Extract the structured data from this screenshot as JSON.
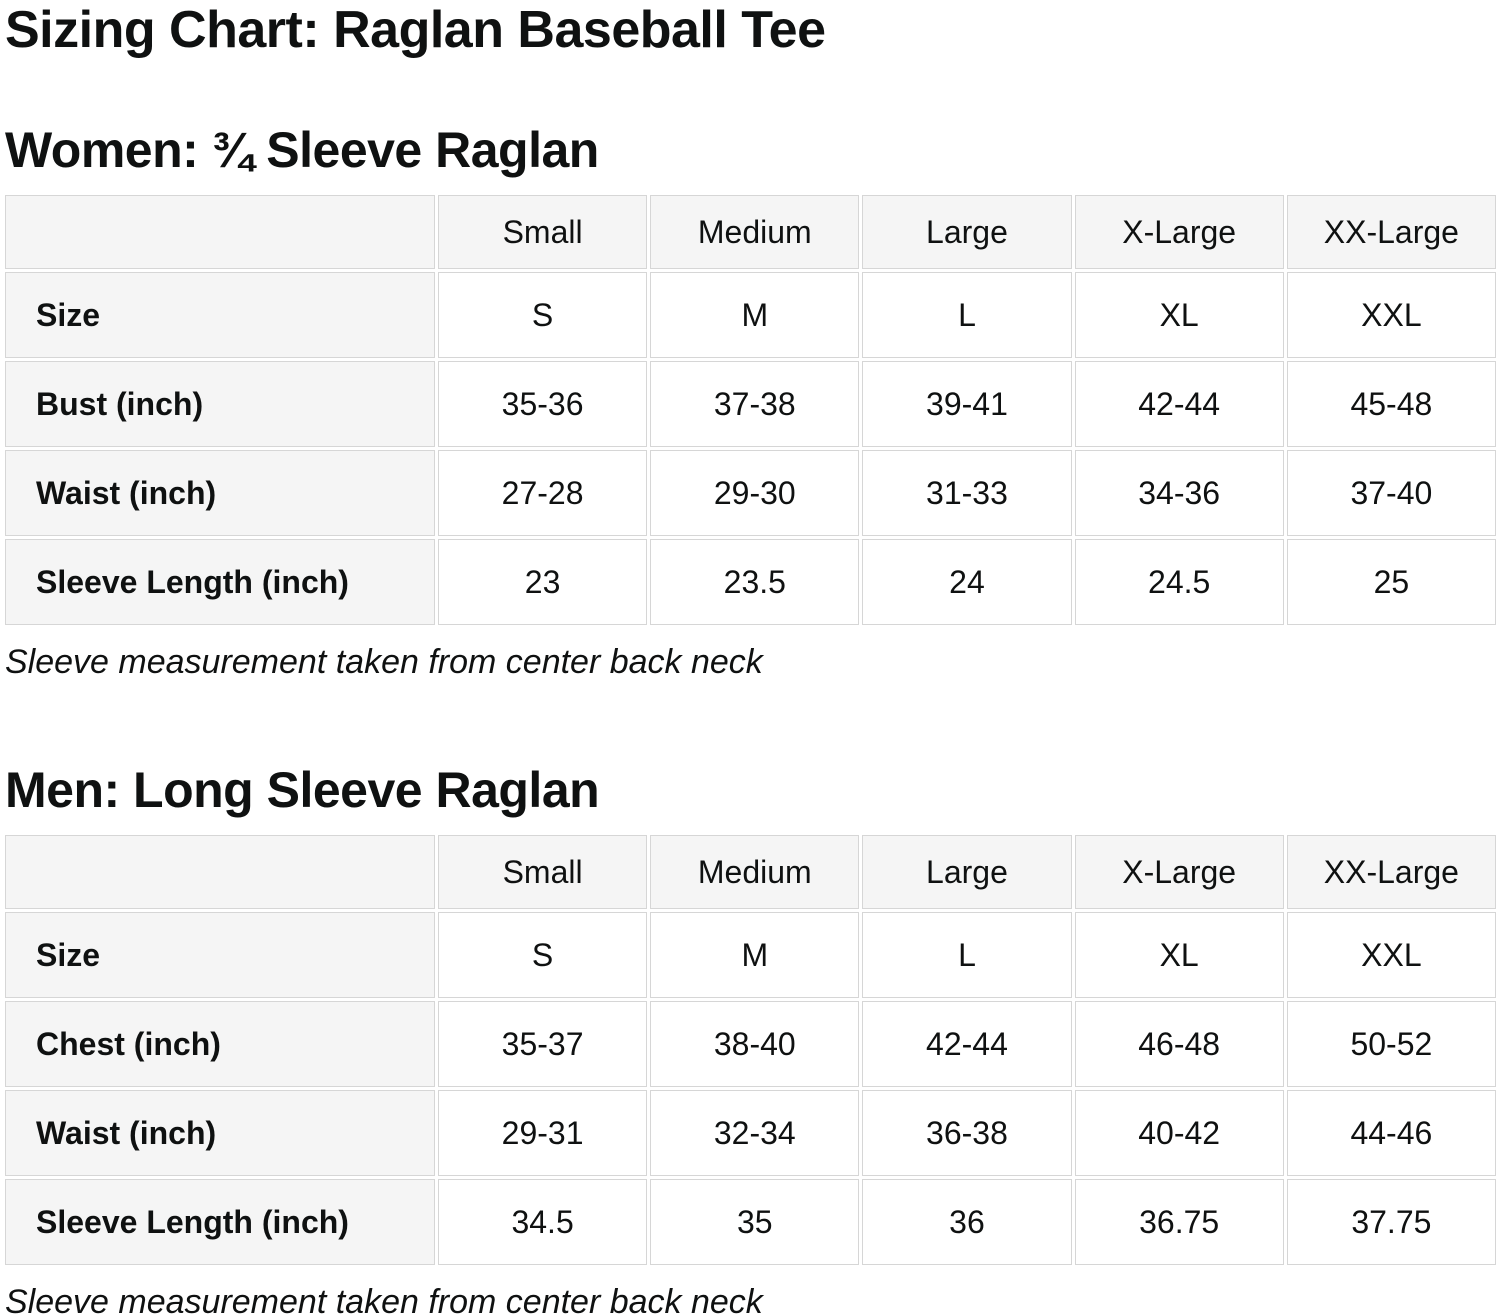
{
  "page": {
    "title": "Sizing Chart: Raglan Baseball Tee"
  },
  "colors": {
    "background": "#ffffff",
    "cell_header_bg": "#f5f5f5",
    "cell_data_bg": "#ffffff",
    "cell_border": "#d6d6d6",
    "text": "#0f1111"
  },
  "women": {
    "heading": "Women: ¾ Sleeve Raglan",
    "note": "Sleeve measurement taken from center back neck",
    "table": {
      "columns": [
        "",
        "Small",
        "Medium",
        "Large",
        "X-Large",
        "XX-Large"
      ],
      "rows": [
        {
          "label": "Size",
          "values": [
            "S",
            "M",
            "L",
            "XL",
            "XXL"
          ]
        },
        {
          "label": "Bust (inch)",
          "values": [
            "35-36",
            "37-38",
            "39-41",
            "42-44",
            "45-48"
          ]
        },
        {
          "label": "Waist (inch)",
          "values": [
            "27-28",
            "29-30",
            "31-33",
            "34-36",
            "37-40"
          ]
        },
        {
          "label": "Sleeve Length (inch)",
          "values": [
            "23",
            "23.5",
            "24",
            "24.5",
            "25"
          ]
        }
      ]
    }
  },
  "men": {
    "heading": "Men: Long Sleeve Raglan",
    "note": "Sleeve measurement taken from center back neck",
    "table": {
      "columns": [
        "",
        "Small",
        "Medium",
        "Large",
        "X-Large",
        "XX-Large"
      ],
      "rows": [
        {
          "label": "Size",
          "values": [
            "S",
            "M",
            "L",
            "XL",
            "XXL"
          ]
        },
        {
          "label": "Chest (inch)",
          "values": [
            "35-37",
            "38-40",
            "42-44",
            "46-48",
            "50-52"
          ]
        },
        {
          "label": "Waist (inch)",
          "values": [
            "29-31",
            "32-34",
            "36-38",
            "40-42",
            "44-46"
          ]
        },
        {
          "label": "Sleeve Length (inch)",
          "values": [
            "34.5",
            "35",
            "36",
            "36.75",
            "37.75"
          ]
        }
      ]
    }
  },
  "chart_data": [
    {
      "type": "table",
      "title": "Women: ¾ Sleeve Raglan",
      "columns": [
        "Small",
        "Medium",
        "Large",
        "X-Large",
        "XX-Large"
      ],
      "rows": {
        "Size": [
          "S",
          "M",
          "L",
          "XL",
          "XXL"
        ],
        "Bust (inch)": [
          "35-36",
          "37-38",
          "39-41",
          "42-44",
          "45-48"
        ],
        "Waist (inch)": [
          "27-28",
          "29-30",
          "31-33",
          "34-36",
          "37-40"
        ],
        "Sleeve Length (inch)": [
          23,
          23.5,
          24,
          24.5,
          25
        ]
      }
    },
    {
      "type": "table",
      "title": "Men: Long Sleeve Raglan",
      "columns": [
        "Small",
        "Medium",
        "Large",
        "X-Large",
        "XX-Large"
      ],
      "rows": {
        "Size": [
          "S",
          "M",
          "L",
          "XL",
          "XXL"
        ],
        "Chest (inch)": [
          "35-37",
          "38-40",
          "42-44",
          "46-48",
          "50-52"
        ],
        "Waist (inch)": [
          "29-31",
          "32-34",
          "36-38",
          "40-42",
          "44-46"
        ],
        "Sleeve Length (inch)": [
          34.5,
          35,
          36,
          36.75,
          37.75
        ]
      }
    }
  ]
}
